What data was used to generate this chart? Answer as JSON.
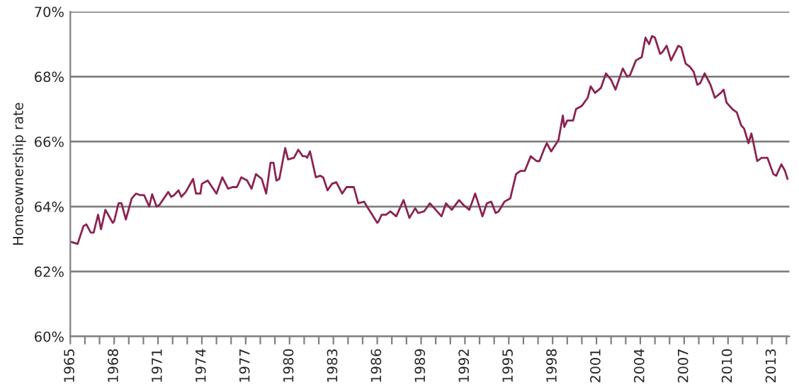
{
  "chart_data": {
    "type": "line",
    "ylabel": "Homeownership rate",
    "x": [
      1965.07,
      1965.5,
      1965.9,
      1966.1,
      1966.4,
      1966.6,
      1966.9,
      1967.1,
      1967.4,
      1967.9,
      1968.0,
      1968.3,
      1968.5,
      1968.8,
      1969.2,
      1969.5,
      1969.8,
      1970.05,
      1970.4,
      1970.6,
      1970.9,
      1971.1,
      1971.7,
      1971.9,
      1972.1,
      1972.4,
      1972.6,
      1972.9,
      1973.4,
      1973.6,
      1973.9,
      1974.0,
      1974.4,
      1974.7,
      1975.0,
      1975.4,
      1975.8,
      1976.1,
      1976.4,
      1976.7,
      1977.1,
      1977.4,
      1977.7,
      1978.1,
      1978.4,
      1978.7,
      1978.9,
      1979.1,
      1979.3,
      1979.7,
      1979.9,
      1980.3,
      1980.6,
      1980.9,
      1981.1,
      1981.2,
      1981.4,
      1981.8,
      1982.1,
      1982.3,
      1982.6,
      1982.9,
      1983.2,
      1983.6,
      1983.9,
      1984.4,
      1984.7,
      1985.1,
      1985.3,
      1986.0,
      1986.1,
      1986.3,
      1986.6,
      1986.9,
      1987.3,
      1987.8,
      1988.2,
      1988.6,
      1988.8,
      1989.2,
      1989.6,
      1990.0,
      1990.4,
      1990.7,
      1991.1,
      1991.6,
      1991.9,
      1992.3,
      1992.7,
      1993.2,
      1993.5,
      1993.8,
      1994.1,
      1994.3,
      1994.7,
      1995.1,
      1995.5,
      1995.8,
      1996.1,
      1996.5,
      1996.9,
      1997.1,
      1997.4,
      1997.6,
      1997.9,
      1998.4,
      1998.7,
      1998.8,
      1999.0,
      1999.4,
      1999.6,
      2000.0,
      2000.4,
      2000.6,
      2000.9,
      2001.3,
      2001.65,
      2002.0,
      2002.3,
      2002.8,
      2003.1,
      2003.3,
      2003.7,
      2004.1,
      2004.35,
      2004.6,
      2004.8,
      2005.0,
      2005.35,
      2005.5,
      2005.8,
      2006.1,
      2006.6,
      2006.8,
      2007.1,
      2007.4,
      2007.65,
      2007.9,
      2008.1,
      2008.4,
      2008.8,
      2009.1,
      2009.5,
      2009.7,
      2009.9,
      2010.3,
      2010.6,
      2010.9,
      2011.1,
      2011.4,
      2011.6,
      2012.0,
      2012.3,
      2012.7,
      2013.1,
      2013.3,
      2013.65,
      2013.9,
      2014.07
    ],
    "series": [
      {
        "color": "#8b2252",
        "values": [
          62.91,
          62.85,
          63.4,
          63.45,
          63.2,
          63.2,
          63.75,
          63.3,
          63.9,
          63.5,
          63.55,
          64.1,
          64.1,
          63.6,
          64.25,
          64.4,
          64.35,
          64.35,
          64.0,
          64.38,
          64.0,
          64.05,
          64.45,
          64.3,
          64.35,
          64.5,
          64.3,
          64.45,
          64.85,
          64.4,
          64.4,
          64.7,
          64.8,
          64.6,
          64.4,
          64.9,
          64.55,
          64.6,
          64.6,
          64.9,
          64.8,
          64.55,
          65.0,
          64.85,
          64.4,
          65.35,
          65.35,
          64.8,
          64.85,
          65.8,
          65.45,
          65.5,
          65.75,
          65.55,
          65.55,
          65.5,
          65.7,
          64.9,
          64.95,
          64.9,
          64.5,
          64.7,
          64.75,
          64.4,
          64.6,
          64.6,
          64.1,
          64.15,
          64.0,
          63.5,
          63.55,
          63.75,
          63.75,
          63.85,
          63.7,
          64.2,
          63.65,
          63.95,
          63.8,
          63.85,
          64.1,
          63.9,
          63.7,
          64.1,
          63.9,
          64.2,
          64.05,
          63.9,
          64.4,
          63.7,
          64.1,
          64.15,
          63.8,
          63.85,
          64.15,
          64.25,
          65.0,
          65.1,
          65.1,
          65.55,
          65.4,
          65.4,
          65.75,
          65.95,
          65.7,
          66.05,
          66.8,
          66.45,
          66.65,
          66.65,
          67.0,
          67.1,
          67.35,
          67.7,
          67.5,
          67.65,
          68.1,
          67.9,
          67.6,
          68.25,
          68.0,
          68.05,
          68.5,
          68.6,
          69.2,
          69.0,
          69.25,
          69.2,
          68.7,
          68.75,
          68.95,
          68.5,
          68.95,
          68.9,
          68.4,
          68.3,
          68.15,
          67.75,
          67.8,
          68.1,
          67.75,
          67.35,
          67.5,
          67.6,
          67.2,
          67.0,
          66.9,
          66.5,
          66.4,
          65.95,
          66.25,
          65.4,
          65.5,
          65.5,
          65.0,
          64.95,
          65.3,
          65.1,
          64.85
        ]
      }
    ],
    "xlim": [
      1965,
      2014.2
    ],
    "ylim": [
      60,
      70
    ],
    "xticks": [
      1965,
      {
        "value": 1966,
        "label": null
      },
      {
        "value": 1967,
        "label": null
      },
      1968,
      {
        "value": 1969,
        "label": null
      },
      {
        "value": 1970,
        "label": null
      },
      1971,
      {
        "value": 1972,
        "label": null
      },
      {
        "value": 1973,
        "label": null
      },
      1974,
      {
        "value": 1975,
        "label": null
      },
      {
        "value": 1976,
        "label": null
      },
      1977,
      {
        "value": 1978,
        "label": null
      },
      {
        "value": 1979,
        "label": null
      },
      1980,
      {
        "value": 1981,
        "label": null
      },
      {
        "value": 1982,
        "label": null
      },
      1983,
      {
        "value": 1984,
        "label": null
      },
      {
        "value": 1985,
        "label": null
      },
      1986,
      {
        "value": 1987,
        "label": null
      },
      {
        "value": 1988,
        "label": null
      },
      1989,
      {
        "value": 1990,
        "label": null
      },
      {
        "value": 1991,
        "label": null
      },
      1992,
      {
        "value": 1993,
        "label": null
      },
      {
        "value": 1994,
        "label": null
      },
      1995,
      {
        "value": 1996,
        "label": null
      },
      {
        "value": 1997,
        "label": null
      },
      1998,
      {
        "value": 1999,
        "label": null
      },
      {
        "value": 2000,
        "label": null
      },
      2001,
      {
        "value": 2002,
        "label": null
      },
      {
        "value": 2003,
        "label": null
      },
      2004,
      {
        "value": 2005,
        "label": null
      },
      {
        "value": 2006,
        "label": null
      },
      2007,
      {
        "value": 2008,
        "label": null
      },
      {
        "value": 2009,
        "label": null
      },
      2010,
      {
        "value": 2011,
        "label": null
      },
      {
        "value": 2012,
        "label": null
      },
      2013,
      {
        "value": 2014,
        "label": null
      }
    ],
    "yticks": [
      {
        "value": 60,
        "label": "60%"
      },
      {
        "value": 62,
        "label": "62%"
      },
      {
        "value": 64,
        "label": "64%"
      },
      {
        "value": 66,
        "label": "66%"
      },
      {
        "value": 68,
        "label": "68%"
      },
      {
        "value": 70,
        "label": "70%"
      }
    ],
    "grid": "y",
    "legend": false,
    "marker": "none",
    "line_style": "solid"
  }
}
